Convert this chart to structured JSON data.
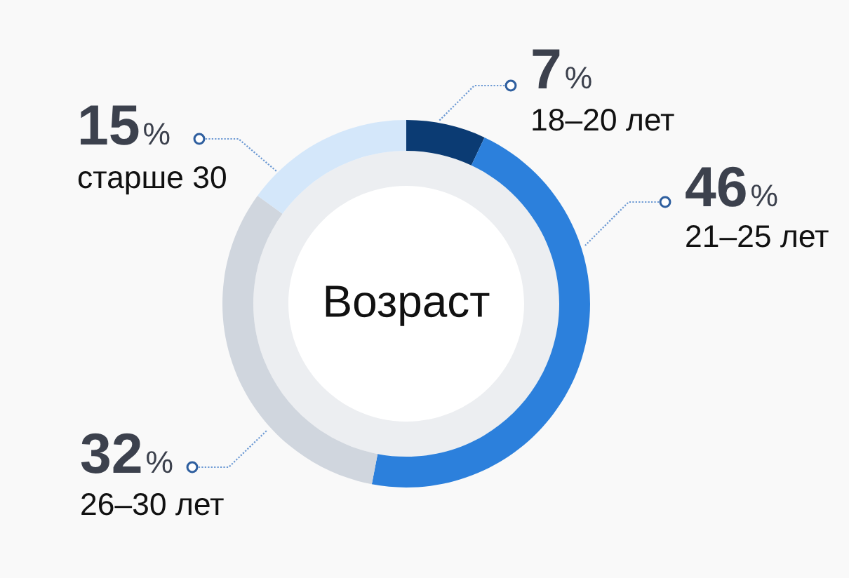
{
  "chart_data": {
    "type": "donut",
    "title": "Возраст",
    "categories": [
      "18–20 лет",
      "21–25 лет",
      "26–30 лет",
      "старше 30"
    ],
    "values": [
      7,
      46,
      32,
      15
    ],
    "value_labels": [
      "7%",
      "46%",
      "32%",
      "15%"
    ],
    "colors": [
      "#0b3b73",
      "#2c80dc",
      "#d0d6de",
      "#d4e7fa"
    ]
  }
}
